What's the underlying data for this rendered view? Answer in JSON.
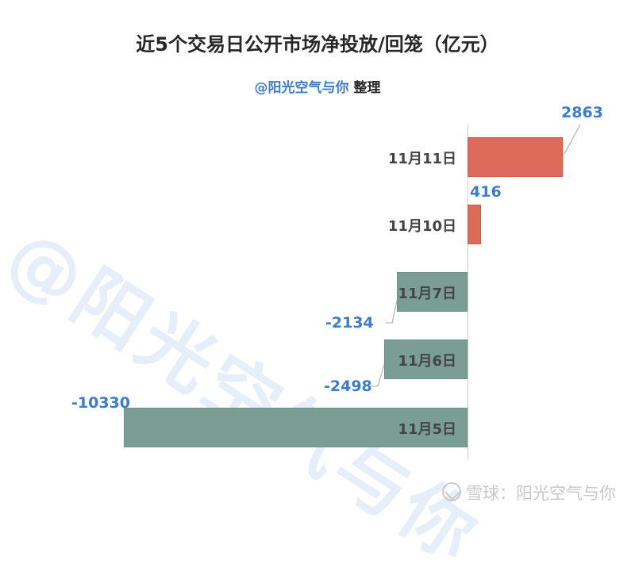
{
  "title": "近5个交易日公开市场净投放/回笼（亿元）",
  "subtitle": {
    "handle": "@阳光空气与你",
    "suffix": " 整理"
  },
  "watermark": "@阳光空气与你",
  "footer": {
    "text": "雪球：阳光空气与你"
  },
  "colors": {
    "positive": "#dc6b5b",
    "negative": "#7a9e94",
    "value_label": "#3d7cc9",
    "category_label": "#444444"
  },
  "chart_data": {
    "type": "bar",
    "orientation": "horizontal",
    "title": "近5个交易日公开市场净投放/回笼（亿元）",
    "subtitle": "@阳光空气与你 整理",
    "categories": [
      "11月11日",
      "11月10日",
      "11月7日",
      "11月6日",
      "11月5日"
    ],
    "values": [
      2863,
      416,
      -2134,
      -2498,
      -10330
    ],
    "unit": "亿元",
    "xlabel": "",
    "ylabel": "",
    "grid": false,
    "legend": null,
    "data_labels": [
      "2863",
      "416",
      "-2134",
      "-2498",
      "-10330"
    ]
  }
}
